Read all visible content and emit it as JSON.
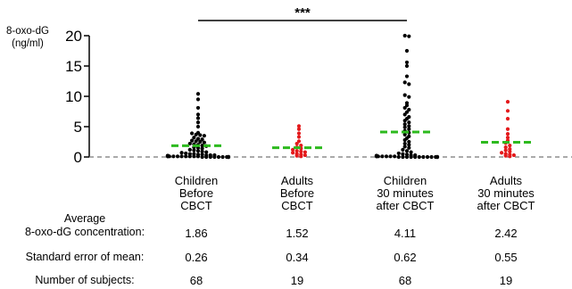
{
  "chart_data": {
    "type": "scatter",
    "ylabel": "8-oxo-dG\n(ng/ml)",
    "ylim": [
      0,
      20
    ],
    "yticks": [
      "0",
      "5",
      "10",
      "15",
      "20"
    ],
    "reference_line": 0,
    "significance": {
      "label": "***",
      "from": "Children Before CBCT",
      "to": "Children 30 minutes after CBCT"
    },
    "categories": [
      "Children\nBefore\nCBCT",
      "Adults\nBefore\nCBCT",
      "Children\n30 minutes\nafter CBCT",
      "Adults\n30 minutes\nafter CBCT"
    ],
    "series": [
      {
        "color": "#000000",
        "mean": 1.86,
        "values": [
          10.4,
          9.5,
          8.1,
          7.0,
          6.4,
          5.7,
          5.0,
          4.0,
          3.9,
          3.7,
          3.6,
          3.5,
          3.2,
          3.0,
          2.9,
          2.7,
          2.6,
          2.5,
          2.4,
          2.2,
          2.1,
          2.0,
          1.9,
          1.8,
          1.6,
          1.5,
          1.4,
          1.2,
          1.1,
          1.0,
          0.9,
          0.8,
          0.7,
          0.6,
          0.5,
          0.5,
          0.4,
          0.4,
          0.3,
          0.3,
          0.3,
          0.2,
          0.2,
          0.2,
          0.2,
          0.1,
          0.1,
          0.1,
          0.1,
          0.1,
          0.1,
          0.1,
          0.1,
          0.1,
          0.1,
          0.0,
          0.0,
          0.0,
          0.0,
          0.0,
          0.0,
          0.0,
          0.0,
          0.0,
          0.0,
          0.0,
          0.0,
          0.0
        ]
      },
      {
        "color": "#e41a1c",
        "mean": 1.52,
        "values": [
          5.1,
          4.6,
          3.9,
          3.3,
          2.6,
          2.2,
          1.9,
          1.6,
          1.4,
          1.2,
          1.0,
          0.9,
          0.8,
          0.7,
          0.5,
          0.4,
          0.3,
          0.2,
          0.1
        ]
      },
      {
        "color": "#000000",
        "mean": 4.11,
        "values": [
          20.0,
          19.9,
          17.5,
          15.6,
          15.0,
          13.3,
          12.3,
          12.0,
          10.2,
          9.9,
          8.9,
          8.5,
          8.1,
          7.8,
          7.4,
          7.0,
          6.6,
          6.3,
          6.0,
          5.7,
          5.4,
          5.1,
          4.9,
          4.6,
          4.3,
          4.0,
          3.7,
          3.4,
          3.1,
          2.8,
          2.5,
          2.2,
          2.0,
          1.7,
          1.5,
          1.2,
          1.0,
          0.8,
          0.6,
          0.5,
          0.4,
          0.3,
          0.3,
          0.2,
          0.2,
          0.2,
          0.1,
          0.1,
          0.1,
          0.1,
          0.1,
          0.1,
          0.1,
          0.0,
          0.0,
          0.0,
          0.0,
          0.0,
          0.0,
          0.0,
          0.0,
          0.0,
          0.0,
          0.0,
          0.0,
          0.0,
          0.0,
          0.0
        ]
      },
      {
        "color": "#e41a1c",
        "mean": 2.42,
        "values": [
          9.1,
          7.6,
          6.3,
          4.6,
          3.8,
          3.2,
          2.7,
          2.3,
          1.9,
          1.6,
          1.3,
          1.1,
          0.9,
          0.7,
          0.5,
          0.4,
          0.3,
          0.2,
          0.1
        ]
      }
    ],
    "mean_line_color": "#2dba1e",
    "table": {
      "rows": [
        {
          "label": "Average\n8-oxo-dG concentration:",
          "values": [
            "1.86",
            "1.52",
            "4.11",
            "2.42"
          ]
        },
        {
          "label": "Standard error of mean:",
          "values": [
            "0.26",
            "0.34",
            "0.62",
            "0.55"
          ]
        },
        {
          "label": "Number of subjects:",
          "values": [
            "68",
            "19",
            "68",
            "19"
          ]
        }
      ]
    }
  }
}
